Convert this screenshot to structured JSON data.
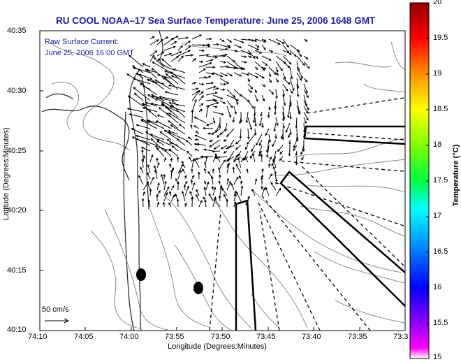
{
  "title": "RU COOL  NOAA–17  Sea Surface Temperature:  June 25, 2006 1648 GMT",
  "current_label": [
    "Raw Surface Current:",
    "June 25, 2006 16:00 GMT"
  ],
  "axes": {
    "xlabel": "Longitude (Degrees:Minutes)",
    "ylabel": "Latitude (Degrees:Minutes)",
    "x_ticks": [
      "74:10",
      "74:05",
      "74:00",
      "73:55",
      "73:50",
      "73:45",
      "73:40",
      "73:35",
      "73:3"
    ],
    "y_ticks": [
      "40:35",
      "40:30",
      "40:25",
      "40:20",
      "40:15",
      "40:10"
    ]
  },
  "colorbar": {
    "label": "Temperature (°C)",
    "ticks": [
      "20",
      "19.5",
      "19",
      "18.5",
      "18",
      "17.5",
      "17",
      "16.5",
      "16",
      "15.5",
      "15"
    ]
  },
  "scale_label": "50 cm/s",
  "colors": {
    "title": "#1a1aa0",
    "coast": "#222222",
    "contour": "#8a8a8a"
  }
}
